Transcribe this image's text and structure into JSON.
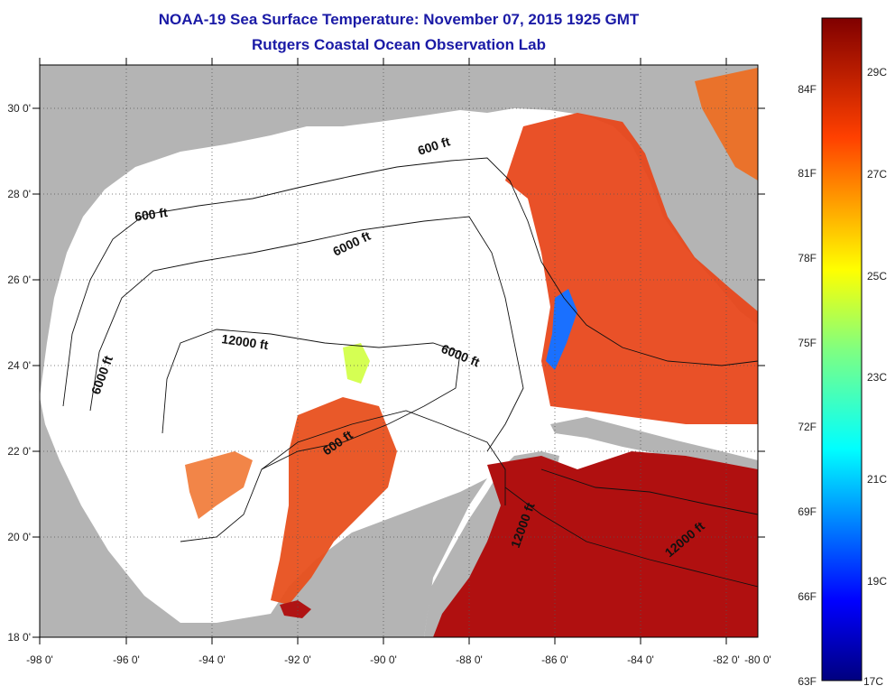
{
  "title": "NOAA-19 Sea Surface Temperature:  November 07, 2015 1925 GMT",
  "subtitle": "Rutgers Coastal Ocean Observation Lab",
  "lon_labels": [
    "-98 0'",
    "-96 0'",
    "-94 0'",
    "-92 0'",
    "-90 0'",
    "-88 0'",
    "-86 0'",
    "-84 0'",
    "-82 0'",
    "-80 0'"
  ],
  "lat_labels": [
    "18 0'",
    "20 0'",
    "22 0'",
    "24 0'",
    "26 0'",
    "28 0'",
    "30 0'"
  ],
  "contour_labels": [
    "600 ft",
    "600 ft",
    "6000 ft",
    "6000 ft",
    "12000 ft",
    "6000 ft",
    "600 ft",
    "12000 ft",
    "12000 ft"
  ],
  "colorbar": {
    "fahrenheit": [
      "84F",
      "81F",
      "78F",
      "75F",
      "72F",
      "69F",
      "66F",
      "63F"
    ],
    "celsius": [
      "29C",
      "27C",
      "25C",
      "23C",
      "21C",
      "19C",
      "17C"
    ]
  },
  "colors": {
    "land": "#b4b4b4",
    "no_data": "#ffffff",
    "title": "#1a1aa6",
    "warm": "#e8401a",
    "hot": "#b01010"
  }
}
